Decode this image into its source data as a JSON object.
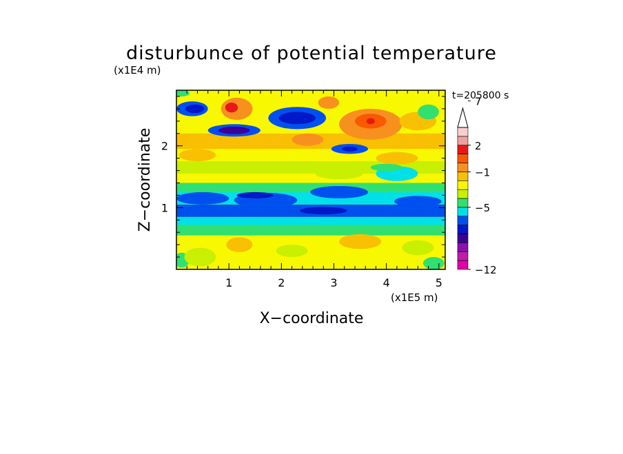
{
  "chart_data": {
    "type": "heatmap",
    "title": "disturbunce of potential temperature",
    "time_label": "t=205800 s",
    "xlabel": "X−coordinate",
    "ylabel": "Z−coordinate",
    "x_unit": "(x1E5 m)",
    "y_unit": "(x1E4 m)",
    "xlim": [
      0.0,
      5.12
    ],
    "ylim": [
      0.0,
      2.9
    ],
    "x_ticks": [
      {
        "value": 1,
        "label": "1"
      },
      {
        "value": 2,
        "label": "2"
      },
      {
        "value": 3,
        "label": "3"
      },
      {
        "value": 4,
        "label": "4"
      },
      {
        "value": 5,
        "label": "5"
      }
    ],
    "y_ticks": [
      {
        "value": 1,
        "label": "1"
      },
      {
        "value": 2,
        "label": "2"
      }
    ],
    "colorbar": {
      "colors": [
        "#e000a8",
        "#c01ca8",
        "#8a10b0",
        "#3c0096",
        "#0018c8",
        "#0050f0",
        "#00e0e8",
        "#30e070",
        "#c8f000",
        "#f8f800",
        "#f8c000",
        "#f89020",
        "#f85a00",
        "#e81818",
        "#f0a0a0",
        "#f8d0d0"
      ],
      "labels": [
        {
          "value": -12,
          "label": "−12"
        },
        {
          "value": -5,
          "label": "−5"
        },
        {
          "value": -1,
          "label": "−1"
        },
        {
          "value": 2,
          "label": "2"
        },
        {
          "value": 7,
          "label": "7"
        }
      ],
      "extend": "max"
    },
    "bands": [
      {
        "x0": 0.0,
        "x1": 5.12,
        "y0": 0.0,
        "y1": 2.9,
        "color": "#c8f000"
      },
      {
        "x0": 0.0,
        "x1": 5.12,
        "y0": 0.0,
        "y1": 0.55,
        "color": "#f8f800"
      },
      {
        "x0": 0.0,
        "x1": 5.12,
        "y0": 0.55,
        "y1": 0.72,
        "color": "#30e070"
      },
      {
        "x0": 0.0,
        "x1": 5.12,
        "y0": 0.72,
        "y1": 0.85,
        "color": "#00e0e8"
      },
      {
        "x0": 0.0,
        "x1": 5.12,
        "y0": 0.85,
        "y1": 1.05,
        "color": "#0050f0"
      },
      {
        "x0": 0.0,
        "x1": 5.12,
        "y0": 1.05,
        "y1": 1.25,
        "color": "#00e0e8"
      },
      {
        "x0": 0.0,
        "x1": 5.12,
        "y0": 1.25,
        "y1": 1.4,
        "color": "#30e070"
      },
      {
        "x0": 0.0,
        "x1": 5.12,
        "y0": 1.4,
        "y1": 2.9,
        "color": "#f8f800"
      },
      {
        "x0": 0.0,
        "x1": 5.12,
        "y0": 1.55,
        "y1": 1.75,
        "color": "#c8f000"
      },
      {
        "x0": 0.0,
        "x1": 5.12,
        "y0": 1.95,
        "y1": 2.2,
        "color": "#f8c000"
      }
    ],
    "blobs": [
      {
        "cx": 0.1,
        "cy": 0.15,
        "rx": 0.15,
        "ry": 0.12,
        "color": "#30e070"
      },
      {
        "cx": 0.45,
        "cy": 0.2,
        "rx": 0.3,
        "ry": 0.15,
        "color": "#c8f000"
      },
      {
        "cx": 1.2,
        "cy": 0.4,
        "rx": 0.25,
        "ry": 0.12,
        "color": "#f8c000"
      },
      {
        "cx": 2.2,
        "cy": 0.3,
        "rx": 0.3,
        "ry": 0.1,
        "color": "#c8f000"
      },
      {
        "cx": 3.5,
        "cy": 0.45,
        "rx": 0.4,
        "ry": 0.12,
        "color": "#f8c000"
      },
      {
        "cx": 4.6,
        "cy": 0.35,
        "rx": 0.3,
        "ry": 0.12,
        "color": "#c8f000"
      },
      {
        "cx": 4.9,
        "cy": 0.1,
        "rx": 0.2,
        "ry": 0.1,
        "color": "#30e070"
      },
      {
        "cx": 0.5,
        "cy": 1.15,
        "rx": 0.5,
        "ry": 0.1,
        "color": "#0050f0"
      },
      {
        "cx": 1.7,
        "cy": 1.12,
        "rx": 0.6,
        "ry": 0.12,
        "color": "#0050f0"
      },
      {
        "cx": 3.1,
        "cy": 1.25,
        "rx": 0.55,
        "ry": 0.1,
        "color": "#0050f0"
      },
      {
        "cx": 4.6,
        "cy": 1.1,
        "rx": 0.45,
        "ry": 0.09,
        "color": "#0050f0"
      },
      {
        "cx": 0.3,
        "cy": 0.92,
        "rx": 0.35,
        "ry": 0.06,
        "color": "#0050f0"
      },
      {
        "cx": 2.8,
        "cy": 0.95,
        "rx": 0.45,
        "ry": 0.06,
        "color": "#0018c8"
      },
      {
        "cx": 1.5,
        "cy": 1.2,
        "rx": 0.35,
        "ry": 0.05,
        "color": "#0018c8"
      },
      {
        "cx": 4.2,
        "cy": 1.55,
        "rx": 0.4,
        "ry": 0.12,
        "color": "#00e0e8"
      },
      {
        "cx": 3.1,
        "cy": 1.55,
        "rx": 0.45,
        "ry": 0.09,
        "color": "#c8f000"
      },
      {
        "cx": 0.3,
        "cy": 2.6,
        "rx": 0.3,
        "ry": 0.12,
        "color": "#0050f0"
      },
      {
        "cx": 0.35,
        "cy": 2.6,
        "rx": 0.18,
        "ry": 0.07,
        "color": "#0018c8"
      },
      {
        "cx": 1.1,
        "cy": 2.25,
        "rx": 0.5,
        "ry": 0.1,
        "color": "#0050f0"
      },
      {
        "cx": 1.1,
        "cy": 2.25,
        "rx": 0.3,
        "ry": 0.06,
        "color": "#3c0096"
      },
      {
        "cx": 1.15,
        "cy": 2.6,
        "rx": 0.3,
        "ry": 0.18,
        "color": "#f89020"
      },
      {
        "cx": 1.05,
        "cy": 2.62,
        "rx": 0.12,
        "ry": 0.08,
        "color": "#e81818"
      },
      {
        "cx": 2.3,
        "cy": 2.45,
        "rx": 0.55,
        "ry": 0.18,
        "color": "#0050f0"
      },
      {
        "cx": 2.3,
        "cy": 2.45,
        "rx": 0.35,
        "ry": 0.1,
        "color": "#0018c8"
      },
      {
        "cx": 2.5,
        "cy": 2.1,
        "rx": 0.3,
        "ry": 0.1,
        "color": "#f89020"
      },
      {
        "cx": 3.7,
        "cy": 2.35,
        "rx": 0.6,
        "ry": 0.25,
        "color": "#f89020"
      },
      {
        "cx": 3.7,
        "cy": 2.4,
        "rx": 0.3,
        "ry": 0.12,
        "color": "#f85a00"
      },
      {
        "cx": 3.7,
        "cy": 2.4,
        "rx": 0.08,
        "ry": 0.05,
        "color": "#e81818"
      },
      {
        "cx": 3.3,
        "cy": 1.95,
        "rx": 0.35,
        "ry": 0.08,
        "color": "#0050f0"
      },
      {
        "cx": 3.3,
        "cy": 1.95,
        "rx": 0.15,
        "ry": 0.04,
        "color": "#0018c8"
      },
      {
        "cx": 4.6,
        "cy": 2.4,
        "rx": 0.35,
        "ry": 0.15,
        "color": "#f8c000"
      },
      {
        "cx": 4.8,
        "cy": 2.55,
        "rx": 0.2,
        "ry": 0.12,
        "color": "#30e070"
      },
      {
        "cx": 4.2,
        "cy": 1.8,
        "rx": 0.4,
        "ry": 0.1,
        "color": "#f8c000"
      },
      {
        "cx": 4.0,
        "cy": 1.65,
        "rx": 0.3,
        "ry": 0.06,
        "color": "#30e070"
      },
      {
        "cx": 0.4,
        "cy": 1.85,
        "rx": 0.35,
        "ry": 0.1,
        "color": "#f8c000"
      },
      {
        "cx": 2.9,
        "cy": 2.7,
        "rx": 0.2,
        "ry": 0.1,
        "color": "#f89020"
      },
      {
        "cx": 0.1,
        "cy": 2.85,
        "rx": 0.15,
        "ry": 0.05,
        "color": "#30e070"
      }
    ]
  }
}
